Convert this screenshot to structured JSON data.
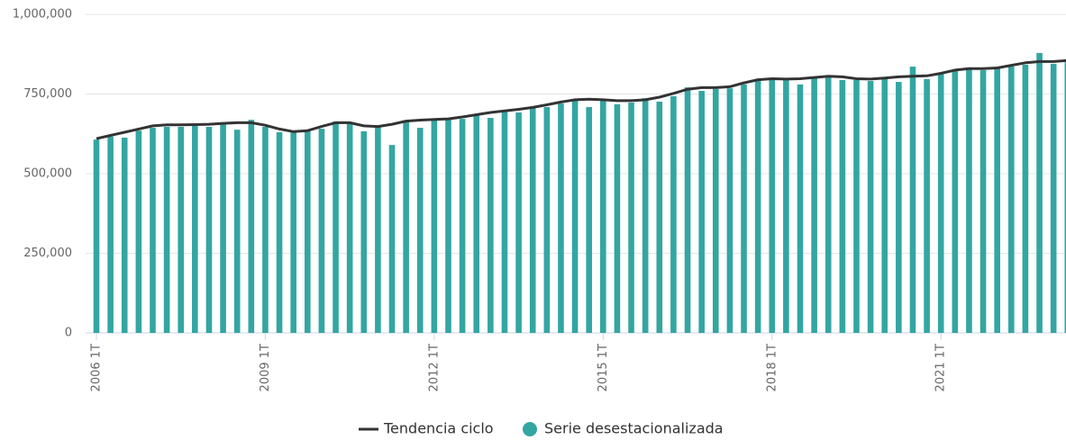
{
  "chart_data": {
    "type": "bar_line",
    "categories": [
      "2006 1T",
      null,
      null,
      null,
      null,
      null,
      null,
      null,
      null,
      null,
      null,
      null,
      "2009 1T",
      null,
      null,
      null,
      null,
      null,
      null,
      null,
      null,
      null,
      null,
      null,
      "2012 1T",
      null,
      null,
      null,
      null,
      null,
      null,
      null,
      null,
      null,
      null,
      null,
      "2015 1T",
      null,
      null,
      null,
      null,
      null,
      null,
      null,
      null,
      null,
      null,
      null,
      "2018 1T",
      null,
      null,
      null,
      null,
      null,
      null,
      null,
      null,
      null,
      null,
      null,
      "2021 1T",
      null,
      null,
      null,
      null,
      null,
      null,
      null,
      null,
      null
    ],
    "series": [
      {
        "name": "Serie desestacionalizada",
        "color": "#33a6a2",
        "kind": "bar",
        "values": [
          607000,
          616000,
          613000,
          635000,
          644000,
          647000,
          647000,
          650000,
          647000,
          655000,
          638000,
          669000,
          647000,
          630000,
          630000,
          633000,
          641000,
          664000,
          658000,
          633000,
          650000,
          590000,
          667000,
          644000,
          669000,
          669000,
          672000,
          686000,
          675000,
          695000,
          692000,
          706000,
          709000,
          720000,
          729000,
          709000,
          732000,
          718000,
          723000,
          737000,
          726000,
          743000,
          771000,
          760000,
          766000,
          768000,
          780000,
          797000,
          794000,
          794000,
          780000,
          802000,
          805000,
          794000,
          794000,
          791000,
          800000,
          788000,
          836000,
          797000,
          814000,
          828000,
          831000,
          825000,
          831000,
          836000,
          842000,
          879000,
          845000,
          850000
        ]
      },
      {
        "name": "Tendencia ciclo",
        "color": "#333333",
        "kind": "line",
        "values": [
          610000,
          620000,
          630000,
          640000,
          650000,
          653000,
          653000,
          654000,
          655000,
          658000,
          660000,
          660000,
          652000,
          640000,
          632000,
          635000,
          648000,
          660000,
          660000,
          650000,
          648000,
          655000,
          665000,
          668000,
          670000,
          672000,
          678000,
          685000,
          692000,
          697000,
          702000,
          708000,
          716000,
          725000,
          732000,
          734000,
          732000,
          729000,
          729000,
          732000,
          740000,
          752000,
          765000,
          770000,
          770000,
          773000,
          785000,
          795000,
          798000,
          797000,
          798000,
          802000,
          806000,
          804000,
          798000,
          797000,
          800000,
          804000,
          806000,
          807000,
          815000,
          825000,
          830000,
          830000,
          832000,
          840000,
          848000,
          852000,
          852000,
          855000
        ]
      }
    ],
    "ylim": [
      0,
      1000000
    ],
    "yticks": [
      0,
      {
        "value": 250000,
        "label": "250,000"
      },
      {
        "value": 500000,
        "label": "500,000"
      },
      {
        "value": 750000,
        "label": "750,000"
      },
      {
        "value": 1000000,
        "label": "1,000,000"
      }
    ],
    "grid": true
  }
}
